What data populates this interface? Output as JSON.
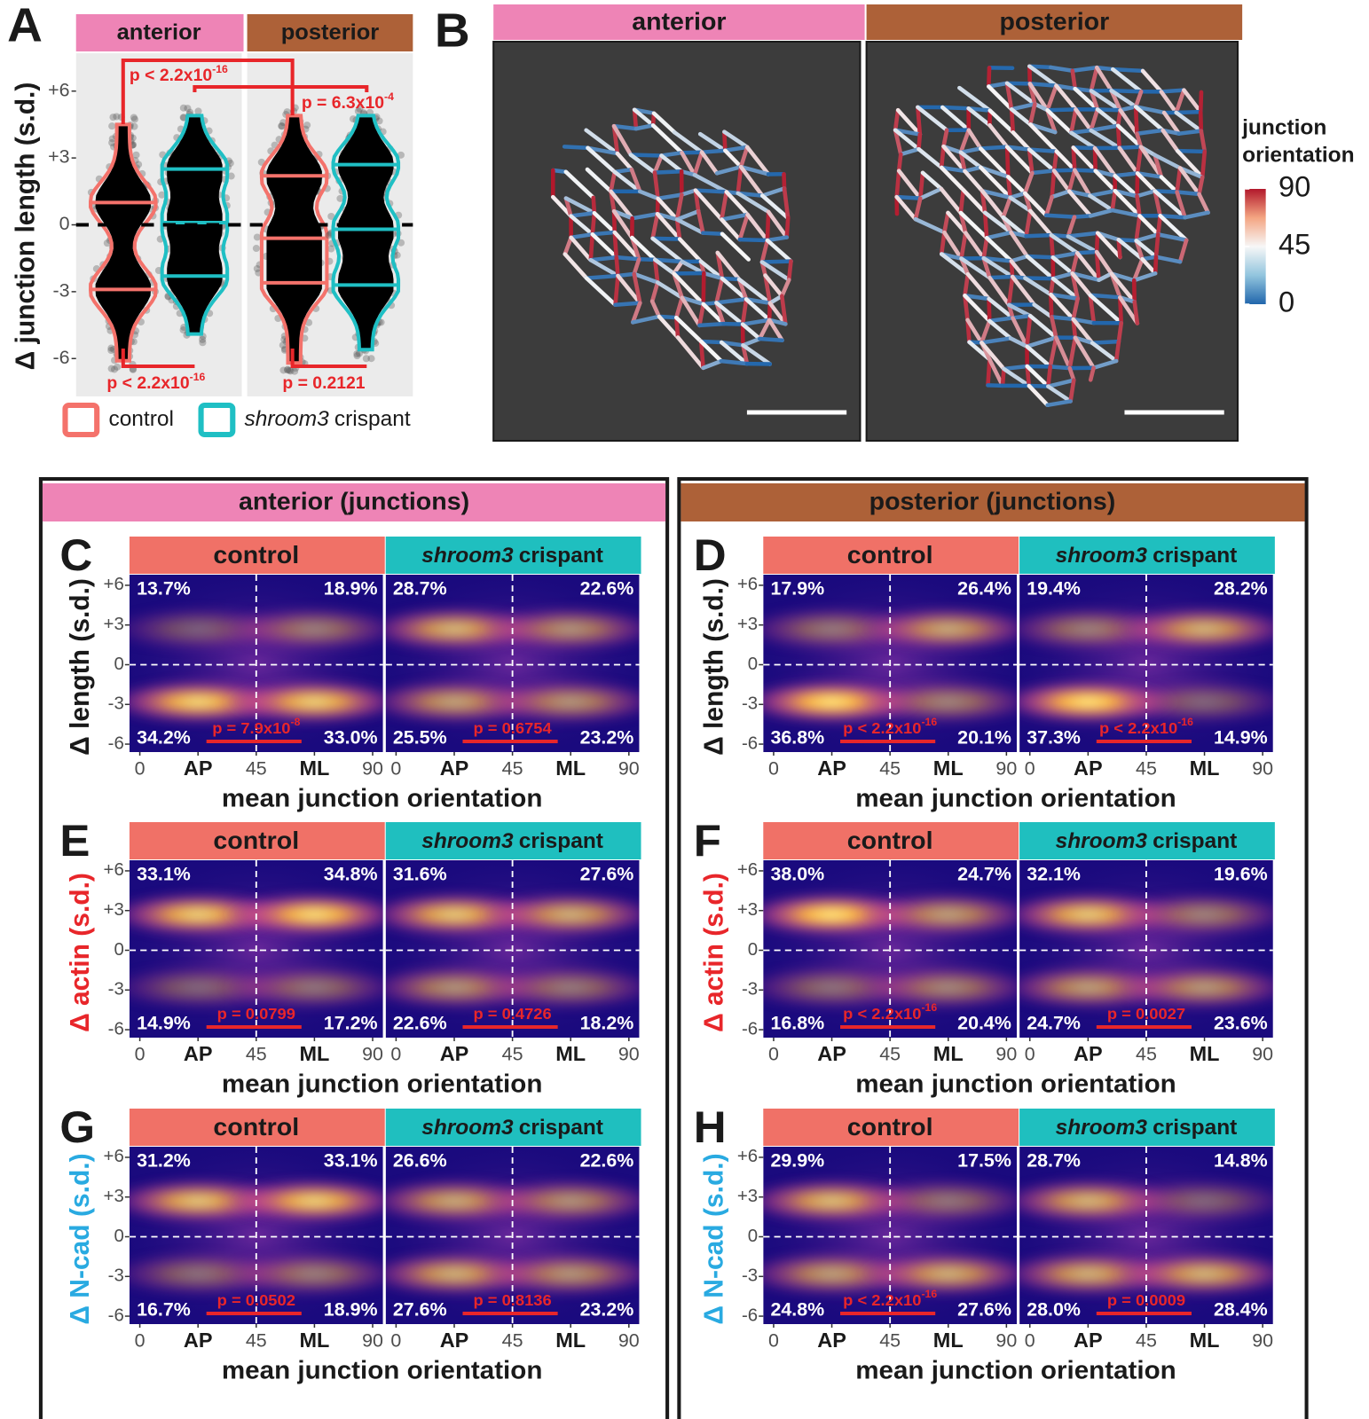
{
  "group_titles": [
    "anterior (junctions)",
    "posterior (junctions)"
  ],
  "chart_data": [
    {
      "type": "violin",
      "panel_label": "A",
      "facets": [
        {
          "name": "anterior",
          "color": "#ee84b6"
        },
        {
          "name": "posterior",
          "color": "#ad6138"
        }
      ],
      "ylabel": "Δ junction length (s.d.)",
      "ylim": [
        -7.7,
        7.7
      ],
      "yticks": [
        {
          "value": 6,
          "label": "+6"
        },
        {
          "value": 3,
          "label": "+3"
        },
        0,
        -3,
        -6
      ],
      "hline": 0,
      "series": [
        {
          "name": "control",
          "color": "#f4726b"
        },
        {
          "name_italic": "shroom3",
          "name": "crispant",
          "color": "#1fbfc4"
        }
      ],
      "violins": [
        {
          "facet": 0,
          "series": 0,
          "min": -6.1,
          "max": 4.5,
          "lines": [
            1.0,
            -2.9
          ]
        },
        {
          "facet": 0,
          "series": 1,
          "min": -4.9,
          "max": 4.9,
          "lines": [
            2.5,
            0.1,
            -2.3
          ]
        },
        {
          "facet": 1,
          "series": 0,
          "min": -6.2,
          "max": 4.9,
          "lines": [
            2.2,
            -0.6,
            -2.6
          ]
        },
        {
          "facet": 1,
          "series": 1,
          "min": -5.6,
          "max": 4.9,
          "lines": [
            2.7,
            -0.2,
            -2.7
          ]
        }
      ],
      "annotations": [
        {
          "text": "p < 2.2x10",
          "sup": "-16"
        },
        {
          "text": "p = 6.3x10",
          "sup": "-4"
        },
        {
          "text": "p < 2.2x10",
          "sup": "-16"
        },
        {
          "text": "p = 0.2121"
        }
      ]
    },
    {
      "type": "image",
      "panel_label": "B",
      "facets": [
        {
          "name": "anterior",
          "color": "#ee84b6"
        },
        {
          "name": "posterior",
          "color": "#ad6138"
        }
      ],
      "colorbar": {
        "title": [
          "junction",
          "orientation"
        ],
        "lim": [
          0,
          90
        ],
        "ticks": [
          90,
          45,
          0
        ]
      }
    },
    {
      "type": "density",
      "panel_label": "C",
      "ylabel": "Δ length (s.d.)",
      "ylabel_color": "#1a1a1a",
      "ylim": [
        -6.6,
        6.8
      ],
      "yticks": [
        {
          "value": 6,
          "label": "+6"
        },
        {
          "value": 3,
          "label": "+3"
        },
        0,
        -3,
        -6
      ],
      "xlim": [
        -4,
        94
      ],
      "xticks": [
        0,
        {
          "value": 22.5,
          "label": "AP"
        },
        45,
        {
          "value": 67.5,
          "label": "ML"
        },
        90
      ],
      "xlabel": "mean junction orientation",
      "hline": 0,
      "vline": 45,
      "facets": [
        {
          "name": "control",
          "color": "#f07167",
          "values": [
            13.7,
            18.9,
            34.2,
            33.0
          ],
          "value_labels": [
            "13.7%",
            "18.9%",
            "34.2%",
            "33.0%"
          ],
          "p_text": "p = 7.9x10",
          "p_sup": "-8"
        },
        {
          "name_italic": "shroom3",
          "name": "crispant",
          "color": "#1fbfbf",
          "values": [
            28.7,
            22.6,
            25.5,
            23.2
          ],
          "value_labels": [
            "28.7%",
            "22.6%",
            "25.5%",
            "23.2%"
          ],
          "p_text": "p = 0.6754"
        }
      ]
    },
    {
      "type": "density",
      "panel_label": "D",
      "ylabel": "Δ length (s.d.)",
      "ylabel_color": "#1a1a1a",
      "ylim": [
        -6.6,
        6.8
      ],
      "yticks": [
        {
          "value": 6,
          "label": "+6"
        },
        {
          "value": 3,
          "label": "+3"
        },
        0,
        -3,
        -6
      ],
      "xlim": [
        -4,
        94
      ],
      "xticks": [
        0,
        {
          "value": 22.5,
          "label": "AP"
        },
        45,
        {
          "value": 67.5,
          "label": "ML"
        },
        90
      ],
      "xlabel": "mean junction orientation",
      "hline": 0,
      "vline": 45,
      "facets": [
        {
          "name": "control",
          "color": "#f07167",
          "values": [
            17.9,
            26.4,
            36.8,
            20.1
          ],
          "value_labels": [
            "17.9%",
            "26.4%",
            "36.8%",
            "20.1%"
          ],
          "p_text": "p < 2.2x10",
          "p_sup": "-16"
        },
        {
          "name_italic": "shroom3",
          "name": "crispant",
          "color": "#1fbfbf",
          "values": [
            19.4,
            28.2,
            37.3,
            14.9
          ],
          "value_labels": [
            "19.4%",
            "28.2%",
            "37.3%",
            "14.9%"
          ],
          "p_text": "p < 2.2x10",
          "p_sup": "-16"
        }
      ]
    },
    {
      "type": "density",
      "panel_label": "E",
      "ylabel": "Δ actin (s.d.)",
      "ylabel_color": "#e8262a",
      "ylim": [
        -6.6,
        6.8
      ],
      "yticks": [
        {
          "value": 6,
          "label": "+6"
        },
        {
          "value": 3,
          "label": "+3"
        },
        0,
        -3,
        -6
      ],
      "xlim": [
        -4,
        94
      ],
      "xticks": [
        0,
        {
          "value": 22.5,
          "label": "AP"
        },
        45,
        {
          "value": 67.5,
          "label": "ML"
        },
        90
      ],
      "xlabel": "mean junction orientation",
      "hline": 0,
      "vline": 45,
      "facets": [
        {
          "name": "control",
          "color": "#f07167",
          "values": [
            33.1,
            34.8,
            14.9,
            17.2
          ],
          "value_labels": [
            "33.1%",
            "34.8%",
            "14.9%",
            "17.2%"
          ],
          "p_text": "p = 0.0799"
        },
        {
          "name_italic": "shroom3",
          "name": "crispant",
          "color": "#1fbfbf",
          "values": [
            31.6,
            27.6,
            22.6,
            18.2
          ],
          "value_labels": [
            "31.6%",
            "27.6%",
            "22.6%",
            "18.2%"
          ],
          "p_text": "p = 0.4726"
        }
      ]
    },
    {
      "type": "density",
      "panel_label": "F",
      "ylabel": "Δ actin (s.d.)",
      "ylabel_color": "#e8262a",
      "ylim": [
        -6.6,
        6.8
      ],
      "yticks": [
        {
          "value": 6,
          "label": "+6"
        },
        {
          "value": 3,
          "label": "+3"
        },
        0,
        -3,
        -6
      ],
      "xlim": [
        -4,
        94
      ],
      "xticks": [
        0,
        {
          "value": 22.5,
          "label": "AP"
        },
        45,
        {
          "value": 67.5,
          "label": "ML"
        },
        90
      ],
      "xlabel": "mean junction orientation",
      "hline": 0,
      "vline": 45,
      "facets": [
        {
          "name": "control",
          "color": "#f07167",
          "values": [
            38.0,
            24.7,
            16.8,
            20.4
          ],
          "value_labels": [
            "38.0%",
            "24.7%",
            "16.8%",
            "20.4%"
          ],
          "p_text": "p < 2.2x10",
          "p_sup": "-16"
        },
        {
          "name_italic": "shroom3",
          "name": "crispant",
          "color": "#1fbfbf",
          "values": [
            32.1,
            19.6,
            24.7,
            23.6
          ],
          "value_labels": [
            "32.1%",
            "19.6%",
            "24.7%",
            "23.6%"
          ],
          "p_text": "p = 0.0027"
        }
      ]
    },
    {
      "type": "density",
      "panel_label": "G",
      "ylabel": "Δ N-cad (s.d.)",
      "ylabel_color": "#29aae1",
      "ylim": [
        -6.6,
        6.8
      ],
      "yticks": [
        {
          "value": 6,
          "label": "+6"
        },
        {
          "value": 3,
          "label": "+3"
        },
        0,
        -3,
        -6
      ],
      "xlim": [
        -4,
        94
      ],
      "xticks": [
        0,
        {
          "value": 22.5,
          "label": "AP"
        },
        45,
        {
          "value": 67.5,
          "label": "ML"
        },
        90
      ],
      "xlabel": "mean junction orientation",
      "hline": 0,
      "vline": 45,
      "facets": [
        {
          "name": "control",
          "color": "#f07167",
          "values": [
            31.2,
            33.1,
            16.7,
            18.9
          ],
          "value_labels": [
            "31.2%",
            "33.1%",
            "16.7%",
            "18.9%"
          ],
          "p_text": "p = 0.0502"
        },
        {
          "name_italic": "shroom3",
          "name": "crispant",
          "color": "#1fbfbf",
          "values": [
            26.6,
            22.6,
            27.6,
            23.2
          ],
          "value_labels": [
            "26.6%",
            "22.6%",
            "27.6%",
            "23.2%"
          ],
          "p_text": "p = 0.8136"
        }
      ]
    },
    {
      "type": "density",
      "panel_label": "H",
      "ylabel": "Δ N-cad (s.d.)",
      "ylabel_color": "#29aae1",
      "ylim": [
        -6.6,
        6.8
      ],
      "yticks": [
        {
          "value": 6,
          "label": "+6"
        },
        {
          "value": 3,
          "label": "+3"
        },
        0,
        -3,
        -6
      ],
      "xlim": [
        -4,
        94
      ],
      "xticks": [
        0,
        {
          "value": 22.5,
          "label": "AP"
        },
        45,
        {
          "value": 67.5,
          "label": "ML"
        },
        90
      ],
      "xlabel": "mean junction orientation",
      "hline": 0,
      "vline": 45,
      "facets": [
        {
          "name": "control",
          "color": "#f07167",
          "values": [
            29.9,
            17.5,
            24.8,
            27.6
          ],
          "value_labels": [
            "29.9%",
            "17.5%",
            "24.8%",
            "27.6%"
          ],
          "p_text": "p < 2.2x10",
          "p_sup": "-16"
        },
        {
          "name_italic": "shroom3",
          "name": "crispant",
          "color": "#1fbfbf",
          "values": [
            28.7,
            14.8,
            28.0,
            28.4
          ],
          "value_labels": [
            "28.7%",
            "14.8%",
            "28.0%",
            "28.4%"
          ],
          "p_text": "p = 0.0009"
        }
      ]
    }
  ]
}
